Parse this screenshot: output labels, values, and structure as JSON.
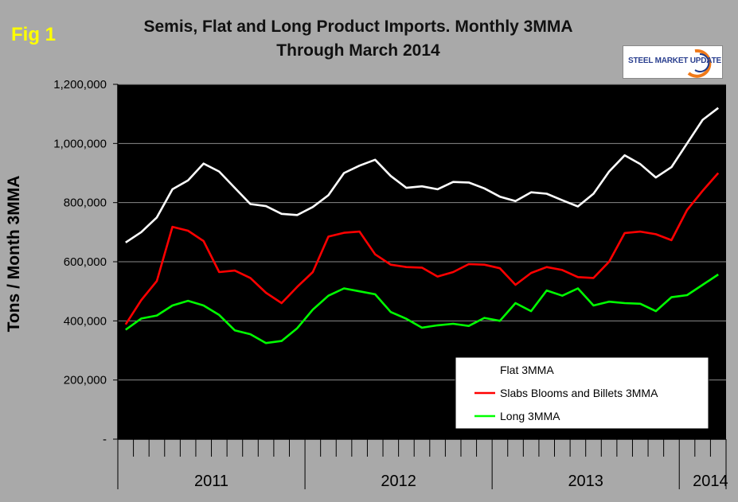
{
  "figure_label": "Fig 1",
  "logo": {
    "text": "STEEL MARKET UPDATE"
  },
  "colors": {
    "page_background": "#a9a9a9",
    "plot_background": "#000000",
    "flat": "#ffffff",
    "slabs": "#ff0000",
    "long": "#00ff00",
    "label_yellow": "#ffff00"
  },
  "chart_data": {
    "type": "line",
    "title_line1": "Semis, Flat and Long Product Imports. Monthly 3MMA",
    "title_line2": "Through March 2014",
    "ylabel": "Tons / Month 3MMA",
    "xlabel": "",
    "ylim": [
      0,
      1200000
    ],
    "y_ticks": [
      0,
      200000,
      400000,
      600000,
      800000,
      1000000,
      1200000
    ],
    "y_tick_labels": [
      "-",
      "200,000",
      "400,000",
      "600,000",
      "800,000",
      "1,000,000",
      "1,200,000"
    ],
    "x_months": 39,
    "x_start": "Jan 2011",
    "x_end": "Mar 2014",
    "year_labels": [
      "2011",
      "2012",
      "2013",
      "2014"
    ],
    "grid": "horizontal",
    "legend_position": "bottom-right",
    "series": [
      {
        "name": "Flat 3MMA",
        "color": "#ffffff",
        "values": [
          665000,
          700000,
          750000,
          845000,
          875000,
          932000,
          905000,
          850000,
          795000,
          788000,
          762000,
          758000,
          785000,
          825000,
          900000,
          925000,
          945000,
          890000,
          850000,
          855000,
          845000,
          870000,
          868000,
          848000,
          820000,
          805000,
          835000,
          830000,
          808000,
          787000,
          830000,
          905000,
          960000,
          930000,
          885000,
          920000,
          1000000,
          1080000,
          1120000
        ]
      },
      {
        "name": "Slabs Blooms and Billets 3MMA",
        "color": "#ff0000",
        "values": [
          388000,
          470000,
          535000,
          718000,
          705000,
          670000,
          565000,
          570000,
          545000,
          495000,
          460000,
          515000,
          565000,
          685000,
          698000,
          702000,
          625000,
          590000,
          582000,
          580000,
          550000,
          565000,
          592000,
          590000,
          578000,
          522000,
          562000,
          582000,
          572000,
          548000,
          545000,
          600000,
          697000,
          702000,
          693000,
          673000,
          775000,
          840000,
          900000
        ]
      },
      {
        "name": "Long 3MMA",
        "color": "#00ff00",
        "values": [
          370000,
          408000,
          418000,
          452000,
          468000,
          452000,
          420000,
          368000,
          355000,
          325000,
          332000,
          375000,
          438000,
          485000,
          510000,
          500000,
          490000,
          430000,
          407000,
          377000,
          385000,
          390000,
          383000,
          410000,
          400000,
          460000,
          433000,
          503000,
          485000,
          510000,
          452000,
          465000,
          460000,
          458000,
          433000,
          480000,
          487000,
          522000,
          557000
        ]
      }
    ]
  }
}
